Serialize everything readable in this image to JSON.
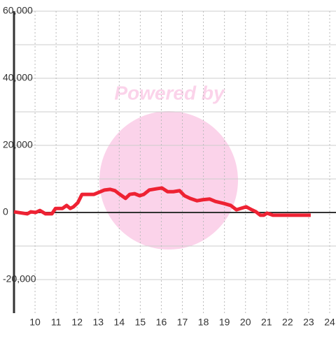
{
  "chart_data": {
    "type": "line",
    "watermark": "Powered by",
    "x": [
      9.0,
      9.63,
      9.8,
      10.03,
      10.23,
      10.5,
      10.8,
      10.97,
      11.3,
      11.5,
      11.67,
      11.83,
      12.03,
      12.23,
      12.8,
      13.3,
      13.57,
      13.8,
      14.03,
      14.3,
      14.5,
      14.73,
      14.97,
      15.17,
      15.43,
      15.8,
      16.03,
      16.3,
      16.57,
      16.87,
      17.1,
      17.37,
      17.7,
      17.97,
      18.3,
      18.57,
      18.97,
      19.3,
      19.57,
      19.77,
      20.03,
      20.3,
      20.5,
      20.7,
      20.87,
      21.03,
      21.3,
      22.3,
      23.1
    ],
    "series": [
      {
        "color": "#ee2233",
        "values": [
          200,
          -400,
          200,
          0,
          600,
          -400,
          -400,
          1200,
          1200,
          2100,
          1200,
          1700,
          2900,
          5400,
          5400,
          6700,
          6900,
          6500,
          5400,
          4200,
          5400,
          5600,
          5000,
          5400,
          6700,
          7100,
          7300,
          6200,
          6200,
          6500,
          5000,
          4200,
          3500,
          3800,
          4000,
          3300,
          2700,
          2100,
          800,
          1200,
          1700,
          800,
          200,
          -800,
          -800,
          -200,
          -800,
          -800,
          -800
        ]
      }
    ],
    "xlim": [
      9,
      24.3
    ],
    "xticks": [
      10,
      11,
      12,
      13,
      14,
      15,
      16,
      17,
      18,
      19,
      20,
      21,
      22,
      23,
      24
    ],
    "ylim": [
      -30000,
      60000
    ],
    "yticks": [
      {
        "value": -20000,
        "label": "-20,000"
      },
      0,
      {
        "value": 20000,
        "label": "20,000"
      },
      {
        "value": 40000,
        "label": "40,000"
      },
      {
        "value": 60000,
        "label": "60,000"
      }
    ],
    "minor_yticks": [
      -10000,
      10000,
      30000,
      50000
    ],
    "grid": true
  }
}
